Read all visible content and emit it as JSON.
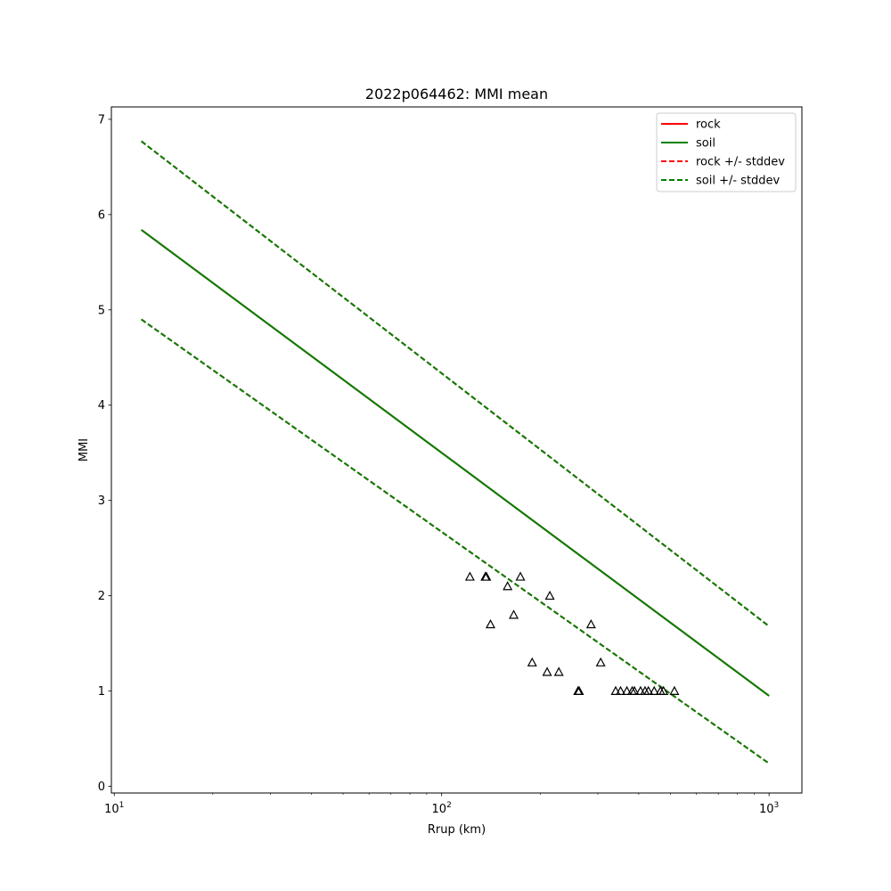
{
  "chart_data": {
    "type": "line",
    "title": "2022p064462: MMI mean",
    "xlabel": "Rrup (km)",
    "ylabel": "MMI",
    "xscale": "log",
    "xlim": [
      9.8,
      1260
    ],
    "ylim": [
      -0.07,
      7.13
    ],
    "grid": false,
    "legend_position": "top-right",
    "x_ticks": [
      {
        "value": 10,
        "base": "10",
        "exp": "1"
      },
      {
        "value": 100,
        "base": "10",
        "exp": "2"
      },
      {
        "value": 1000,
        "base": "10",
        "exp": "3"
      }
    ],
    "y_ticks": [
      "0",
      "1",
      "2",
      "3",
      "4",
      "5",
      "6",
      "7"
    ],
    "series": [
      {
        "name": "rock",
        "color": "#ff0000",
        "style": "solid",
        "x": [
          12.1,
          1000
        ],
        "y": [
          5.84,
          0.95
        ]
      },
      {
        "name": "soil",
        "color": "#008000",
        "style": "solid",
        "x": [
          12.1,
          1000
        ],
        "y": [
          5.84,
          0.95
        ]
      },
      {
        "name": "rock +/- stddev",
        "color": "#ff0000",
        "style": "dashed",
        "bands": [
          {
            "x": [
              12.1,
              1000
            ],
            "y": [
              6.77,
              1.68
            ]
          },
          {
            "x": [
              12.1,
              1000
            ],
            "y": [
              4.9,
              0.24
            ]
          }
        ]
      },
      {
        "name": "soil +/- stddev",
        "color": "#008000",
        "style": "dashed",
        "bands": [
          {
            "x": [
              12.1,
              1000
            ],
            "y": [
              6.77,
              1.68
            ]
          },
          {
            "x": [
              12.1,
              1000
            ],
            "y": [
              4.9,
              0.24
            ]
          }
        ]
      }
    ],
    "observations": {
      "marker": "triangle",
      "color": "#000000",
      "points": [
        {
          "x": 122,
          "y": 2.2
        },
        {
          "x": 136,
          "y": 2.2
        },
        {
          "x": 137,
          "y": 2.2
        },
        {
          "x": 174,
          "y": 2.2
        },
        {
          "x": 214,
          "y": 2.0
        },
        {
          "x": 159,
          "y": 2.1
        },
        {
          "x": 166,
          "y": 1.8
        },
        {
          "x": 141,
          "y": 1.7
        },
        {
          "x": 286,
          "y": 1.7
        },
        {
          "x": 189,
          "y": 1.3
        },
        {
          "x": 306,
          "y": 1.3
        },
        {
          "x": 210,
          "y": 1.2
        },
        {
          "x": 228,
          "y": 1.2
        },
        {
          "x": 261,
          "y": 1.0
        },
        {
          "x": 263,
          "y": 1.0
        },
        {
          "x": 340,
          "y": 1.0
        },
        {
          "x": 352,
          "y": 1.0
        },
        {
          "x": 368,
          "y": 1.0
        },
        {
          "x": 382,
          "y": 1.0
        },
        {
          "x": 388,
          "y": 1.0
        },
        {
          "x": 405,
          "y": 1.0
        },
        {
          "x": 418,
          "y": 1.0
        },
        {
          "x": 428,
          "y": 1.0
        },
        {
          "x": 446,
          "y": 1.0
        },
        {
          "x": 466,
          "y": 1.0
        },
        {
          "x": 476,
          "y": 1.0
        },
        {
          "x": 514,
          "y": 1.0
        }
      ]
    }
  }
}
